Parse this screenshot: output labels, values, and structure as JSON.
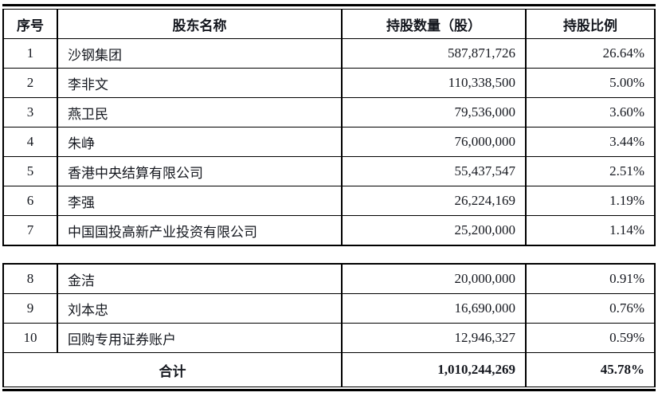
{
  "table": {
    "columns": [
      {
        "key": "index",
        "label": "序号"
      },
      {
        "key": "name",
        "label": "股东名称"
      },
      {
        "key": "shares",
        "label": "持股数量（股）"
      },
      {
        "key": "ratio",
        "label": "持股比例"
      }
    ],
    "group1": [
      {
        "index": "1",
        "name": "沙钢集团",
        "shares": "587,871,726",
        "ratio": "26.64%"
      },
      {
        "index": "2",
        "name": "李非文",
        "shares": "110,338,500",
        "ratio": "5.00%"
      },
      {
        "index": "3",
        "name": "燕卫民",
        "shares": "79,536,000",
        "ratio": "3.60%"
      },
      {
        "index": "4",
        "name": "朱峥",
        "shares": "76,000,000",
        "ratio": "3.44%"
      },
      {
        "index": "5",
        "name": "香港中央结算有限公司",
        "shares": "55,437,547",
        "ratio": "2.51%"
      },
      {
        "index": "6",
        "name": "李强",
        "shares": "26,224,169",
        "ratio": "1.19%"
      },
      {
        "index": "7",
        "name": "中国国投高新产业投资有限公司",
        "shares": "25,200,000",
        "ratio": "1.14%"
      }
    ],
    "group2": [
      {
        "index": "8",
        "name": "金洁",
        "shares": "20,000,000",
        "ratio": "0.91%"
      },
      {
        "index": "9",
        "name": "刘本忠",
        "shares": "16,690,000",
        "ratio": "0.76%"
      },
      {
        "index": "10",
        "name": "回购专用证券账户",
        "shares": "12,946,327",
        "ratio": "0.59%"
      }
    ],
    "total": {
      "label": "合计",
      "shares": "1,010,244,269",
      "ratio": "45.78%"
    }
  },
  "colors": {
    "border": "#000000",
    "text": "#15181f",
    "background": "#ffffff"
  }
}
